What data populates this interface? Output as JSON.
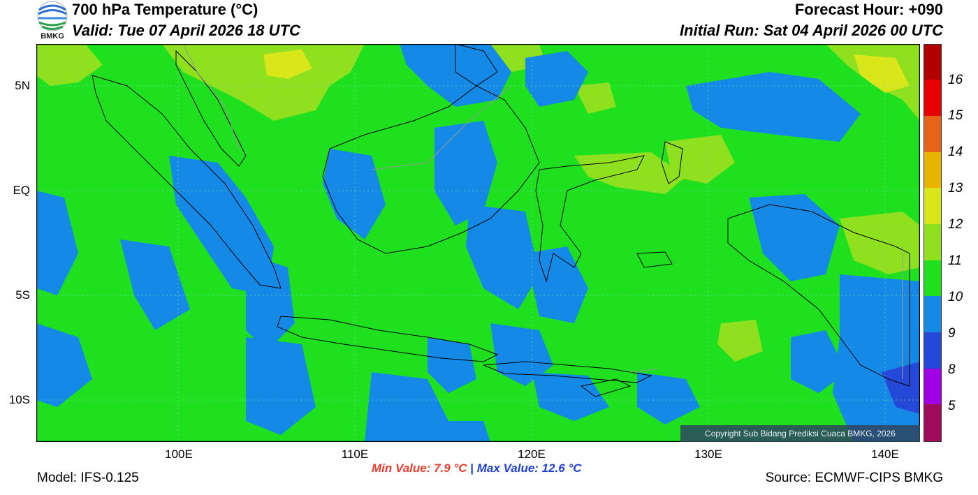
{
  "header": {
    "title": "700 hPa Temperature (°C)",
    "valid": "Valid: Tue 07 April 2026 18 UTC",
    "forecast_hour": "Forecast Hour: +090",
    "initial_run": "Initial Run: Sat 04 April 2026 00 UTC"
  },
  "logo": {
    "text": "BMKG",
    "icon": "bmkg-logo-icon"
  },
  "map": {
    "lat_labels": [
      "5N",
      "EQ",
      "5S",
      "10S"
    ],
    "lon_labels": [
      "100E",
      "110E",
      "120E",
      "130E",
      "140E"
    ],
    "copyright": "Copyright Sub Bidang Prediksi Cuaca BMKG, 2026"
  },
  "colorbar": {
    "labels": [
      "16",
      "15",
      "14",
      "13",
      "12",
      "11",
      "10",
      "9",
      "8",
      "5"
    ],
    "colors": [
      "#b30000",
      "#e60000",
      "#ff1a1a",
      "#e8641a",
      "#e8b400",
      "#d9e619",
      "#8fe01f",
      "#1ee01e",
      "#1489e6",
      "#2449d9",
      "#a100e6",
      "#a00a5a"
    ]
  },
  "stats": {
    "min_value": "Min Value: 7.9 °C",
    "separator": "|",
    "max_value": "Max Value: 12.6 °C"
  },
  "footer": {
    "model": "Model: IFS-0.125",
    "source": "Source: ECMWF-CIPS BMKG"
  }
}
